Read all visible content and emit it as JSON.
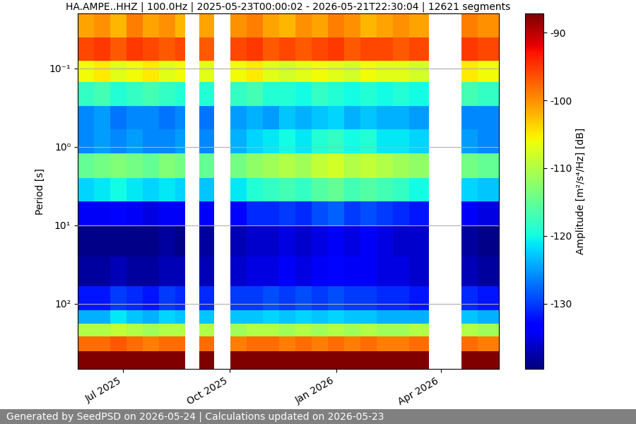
{
  "chart_data": {
    "type": "heatmap",
    "title": "HA.AMPE..HHZ | 100.0Hz | 2025-05-23T00:00:02 - 2026-05-21T22:30:04 | 12621 segments",
    "y_label": "Period [s]",
    "footer": "Generated by SeedPSD on 2026-05-24 | Calculations updated on 2026-05-23",
    "log": "y",
    "grid": "y",
    "color": "jet",
    "xlim": [
      "2025-05-23",
      "2026-05-21"
    ],
    "xticks": [
      {
        "value": "2025-07-01",
        "label": "Jul 2025"
      },
      {
        "value": "2025-10-01",
        "label": "Oct 2025"
      },
      {
        "value": "2026-01-01",
        "label": "Jan 2026"
      },
      {
        "value": "2026-04-01",
        "label": "Apr 2026"
      }
    ],
    "ylim": [
      676,
      0.02
    ],
    "yticks": [
      {
        "value": 0.1,
        "label": "10⁻¹"
      },
      {
        "value": 1,
        "label": "10⁰"
      },
      {
        "value": 10,
        "label": "10¹"
      },
      {
        "value": 100,
        "label": "10²"
      }
    ],
    "time_edges": [
      "2025-05-23",
      "2025-06-06",
      "2025-06-20",
      "2025-07-04",
      "2025-07-18",
      "2025-08-01",
      "2025-08-15",
      "2025-08-24",
      "2025-09-05",
      "2025-09-18",
      "2025-10-02",
      "2025-10-16",
      "2025-10-30",
      "2025-11-13",
      "2025-11-27",
      "2025-12-11",
      "2025-12-25",
      "2026-01-08",
      "2026-01-22",
      "2026-02-05",
      "2026-02-19",
      "2026-03-05",
      "2026-03-22",
      "2026-04-19",
      "2026-05-03",
      "2026-05-21"
    ],
    "period_edges": [
      0.02,
      0.04,
      0.08,
      0.15,
      0.3,
      0.6,
      1.2,
      2.5,
      5,
      10,
      25,
      60,
      120,
      180,
      260,
      400,
      676
    ],
    "cells": [
      [
        -101,
        -100,
        -102,
        -99,
        -101,
        -100,
        -102,
        null,
        -101,
        null,
        -100,
        -99,
        -101,
        -102,
        -100,
        -101,
        -99,
        -100,
        -102,
        -101,
        -100,
        -101,
        null,
        -99,
        -100
      ],
      [
        -96,
        -95,
        -97,
        -95,
        -96,
        -97,
        -96,
        null,
        -97,
        null,
        -96,
        -95,
        -97,
        -96,
        -97,
        -96,
        -95,
        -97,
        -96,
        -96,
        -97,
        -96,
        null,
        -95,
        -96
      ],
      [
        -106,
        -105,
        -107,
        -106,
        -105,
        -107,
        -106,
        null,
        -107,
        null,
        -106,
        -105,
        -107,
        -108,
        -107,
        -106,
        -107,
        -108,
        -106,
        -107,
        -107,
        -108,
        null,
        -105,
        -106
      ],
      [
        -118,
        -117,
        -119,
        -118,
        -117,
        -118,
        -119,
        null,
        -119,
        null,
        -118,
        -117,
        -119,
        -119,
        -120,
        -118,
        -119,
        -120,
        -119,
        -120,
        -119,
        -120,
        null,
        -117,
        -118
      ],
      [
        -126,
        -125,
        -127,
        -126,
        -126,
        -127,
        -126,
        null,
        -127,
        null,
        -125,
        -124,
        -125,
        -123,
        -124,
        -123,
        -122,
        -124,
        -123,
        -124,
        -124,
        -125,
        null,
        -126,
        -126
      ],
      [
        -126,
        -125,
        -126,
        -125,
        -126,
        -126,
        -125,
        null,
        -126,
        null,
        -124,
        -122,
        -121,
        -120,
        -121,
        -119,
        -118,
        -120,
        -119,
        -121,
        -121,
        -122,
        null,
        -125,
        -126
      ],
      [
        -115,
        -114,
        -113,
        -114,
        -115,
        -113,
        -114,
        null,
        -115,
        null,
        -114,
        -112,
        -111,
        -110,
        -111,
        -109,
        -108,
        -110,
        -109,
        -110,
        -111,
        -112,
        null,
        -114,
        -115
      ],
      [
        -122,
        -121,
        -120,
        -121,
        -122,
        -121,
        -122,
        null,
        -123,
        null,
        -121,
        -119,
        -118,
        -117,
        -118,
        -116,
        -115,
        -117,
        -116,
        -117,
        -118,
        -120,
        null,
        -122,
        -123
      ],
      [
        -134,
        -134,
        -133,
        -134,
        -135,
        -134,
        -134,
        null,
        -134,
        null,
        -133,
        -131,
        -131,
        -130,
        -131,
        -129,
        -128,
        -130,
        -129,
        -130,
        -131,
        -132,
        null,
        -134,
        -135
      ],
      [
        -139,
        -139,
        -139,
        -139,
        -139,
        -138,
        -139,
        null,
        -138,
        null,
        -137,
        -136,
        -136,
        -135,
        -136,
        -135,
        -134,
        -135,
        -134,
        -135,
        -136,
        -136,
        null,
        -138,
        -139
      ],
      [
        -138,
        -138,
        -137,
        -138,
        -138,
        -137,
        -137,
        null,
        -137,
        null,
        -136,
        -135,
        -135,
        -134,
        -135,
        -134,
        -133,
        -134,
        -134,
        -135,
        -135,
        -136,
        null,
        -137,
        -138
      ],
      [
        -132,
        -132,
        -130,
        -131,
        -132,
        -130,
        -131,
        null,
        -131,
        null,
        -130,
        -130,
        -129,
        -130,
        -129,
        -130,
        -129,
        -130,
        -130,
        -131,
        -131,
        -132,
        null,
        -131,
        -132
      ],
      [
        -124,
        -124,
        -121,
        -123,
        -124,
        -122,
        -123,
        null,
        -123,
        null,
        -123,
        -123,
        -122,
        -123,
        -122,
        -123,
        -122,
        -123,
        -123,
        -124,
        -124,
        -124,
        null,
        -123,
        -124
      ],
      [
        -110,
        -110,
        -109,
        -110,
        -111,
        -110,
        -110,
        null,
        -110,
        null,
        -111,
        -110,
        -110,
        -111,
        -110,
        -111,
        -110,
        -111,
        -110,
        -111,
        -111,
        -110,
        null,
        -110,
        -111
      ],
      [
        -98,
        -98,
        -97,
        -98,
        -99,
        -98,
        -98,
        null,
        -98,
        null,
        -99,
        -98,
        -98,
        -99,
        -98,
        -99,
        -98,
        -99,
        -98,
        -99,
        -99,
        -98,
        null,
        -98,
        -99
      ],
      [
        -86,
        -86,
        -86,
        -86,
        -86,
        -86,
        -86,
        null,
        -86,
        null,
        -86,
        -86,
        -86,
        -86,
        -86,
        -86,
        -86,
        -86,
        -86,
        -86,
        -86,
        -86,
        null,
        -86,
        -86
      ]
    ],
    "colorbar": {
      "label": "Amplitude [m²/s⁴/Hz] [dB]",
      "range": [
        -139.6,
        -87.2
      ],
      "ticks": [
        -130,
        -120,
        -110,
        -100,
        -90
      ]
    }
  }
}
